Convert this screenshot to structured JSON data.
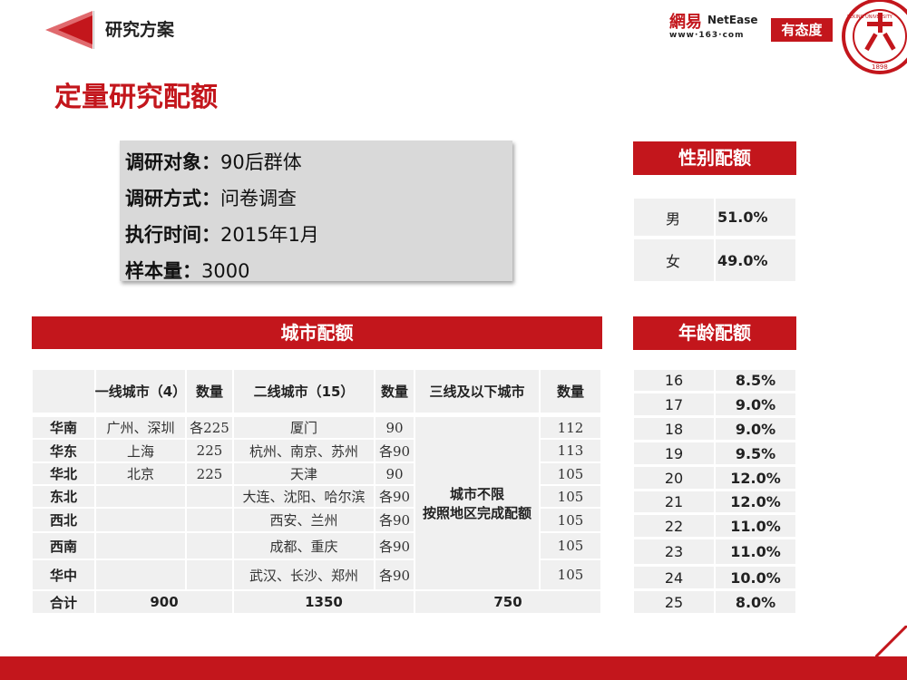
{
  "header": {
    "section_title": "研究方案",
    "page_title": "定量研究配额",
    "logo_netease_cn": "網易",
    "logo_netease_en": "NetEase",
    "logo_netease_url": "www·163·com",
    "logo_youtai": "有态度",
    "logo_pku_text": "PEKING UNIVERSITY",
    "logo_pku_year": "1898"
  },
  "info": [
    {
      "label": "调研对象：",
      "value": "90后群体"
    },
    {
      "label": "调研方式：",
      "value": "问卷调查"
    },
    {
      "label": "执行时间：",
      "value": "2015年1月"
    },
    {
      "label": "样本量：",
      "value": "3000"
    }
  ],
  "city": {
    "title": "城市配额",
    "headers": [
      "一线城市（4）",
      "数量",
      "二线城市（15）",
      "数量",
      "三线及以下城市",
      "数量"
    ],
    "rows": [
      {
        "region": "华南",
        "t1": "广州、深圳",
        "n1": "各225",
        "t2": "厦门",
        "n2": "90",
        "n3": "112"
      },
      {
        "region": "华东",
        "t1": "上海",
        "n1": "225",
        "t2": "杭州、南京、苏州",
        "n2": "各90",
        "n3": "113"
      },
      {
        "region": "华北",
        "t1": "北京",
        "n1": "225",
        "t2": "天津",
        "n2": "90",
        "n3": "105"
      },
      {
        "region": "东北",
        "t1": "",
        "n1": "",
        "t2": "大连、沈阳、哈尔滨",
        "n2": "各90",
        "n3": "105"
      },
      {
        "region": "西北",
        "t1": "",
        "n1": "",
        "t2": "西安、兰州",
        "n2": "各90",
        "n3": "105"
      },
      {
        "region": "西南",
        "t1": "",
        "n1": "",
        "t2": "成都、重庆",
        "n2": "各90",
        "n3": "105"
      },
      {
        "region": "华中",
        "t1": "",
        "n1": "",
        "t2": "武汉、长沙、郑州",
        "n2": "各90",
        "n3": "105"
      }
    ],
    "tier3_note_1": "城市不限",
    "tier3_note_2": "按照地区完成配额",
    "total_label": "合计",
    "total_t1": "900",
    "total_t2": "1350",
    "total_t3": "750"
  },
  "gender": {
    "title": "性别配额",
    "rows": [
      {
        "label": "男",
        "value": "51.0%"
      },
      {
        "label": "女",
        "value": "49.0%"
      }
    ]
  },
  "age": {
    "title": "年龄配额",
    "rows": [
      {
        "age": "16",
        "value": "8.5%"
      },
      {
        "age": "17",
        "value": "9.0%"
      },
      {
        "age": "18",
        "value": "9.0%"
      },
      {
        "age": "19",
        "value": "9.5%"
      },
      {
        "age": "20",
        "value": "12.0%"
      },
      {
        "age": "21",
        "value": "12.0%"
      },
      {
        "age": "22",
        "value": "11.0%"
      },
      {
        "age": "23",
        "value": "11.0%"
      },
      {
        "age": "24",
        "value": "10.0%"
      },
      {
        "age": "25",
        "value": "8.0%"
      }
    ]
  },
  "colors": {
    "accent": "#c3161c",
    "cell_bg": "#f0f0f0",
    "info_bg": "#d9d9d9"
  }
}
